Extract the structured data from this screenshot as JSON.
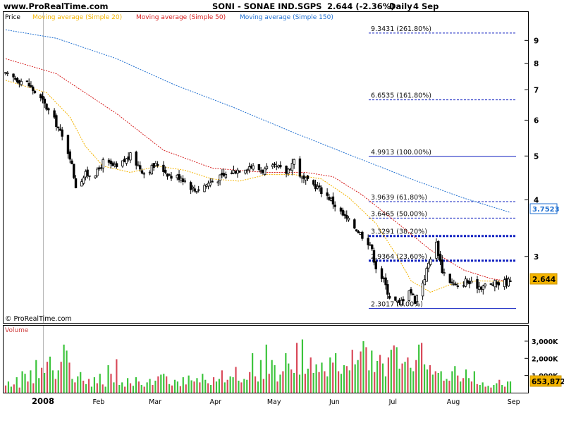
{
  "header": {
    "site": "www.ProRealTime.com",
    "instrument": "SONI - SONAE IND.SGPS",
    "last_quote": "2.644 (-2.36%)",
    "period": "Daily",
    "date": "4 Sep"
  },
  "copyright": "© ProRealTime.com",
  "legend": [
    {
      "label": "Price",
      "color": "#000000"
    },
    {
      "label": "Moving average (Simple 20)",
      "color": "#f4b400"
    },
    {
      "label": "Moving average (Simple 50)",
      "color": "#d62020"
    },
    {
      "label": "Moving average (Simple 150)",
      "color": "#1f6fd0"
    }
  ],
  "volume_label": "Volume",
  "chart_data": [
    {
      "type": "candlestick",
      "yscale": "log",
      "ylim": [
        2.14,
        10.4
      ],
      "y_ticks": [
        3,
        4,
        5,
        6,
        7,
        8,
        9
      ],
      "x_ticks": [
        "2008",
        "Feb",
        "Mar",
        "Apr",
        "May",
        "Jun",
        "Jul",
        "Aug",
        "Sep"
      ],
      "last_price": "2.644",
      "last_price_color": "#f4b400",
      "ma150_last": "3.7523",
      "ma150_last_color": "#1f6fd0",
      "fibonacci_levels": [
        {
          "value": 9.3431,
          "label": "9.3431 (261.80%)",
          "style": "dashed"
        },
        {
          "value": 6.6535,
          "label": "6.6535 (161.80%)",
          "style": "dashed"
        },
        {
          "value": 4.9913,
          "label": "4.9913 (100.00%)",
          "style": "solid"
        },
        {
          "value": 3.9639,
          "label": "3.9639 (61.80%)",
          "style": "dashed"
        },
        {
          "value": 3.6465,
          "label": "3.6465 (50.00%)",
          "style": "dashed"
        },
        {
          "value": 3.3291,
          "label": "3.3291 (38.20%)",
          "style": "heavy"
        },
        {
          "value": 2.9364,
          "label": "2.9364 (23.60%)",
          "style": "heavy"
        },
        {
          "value": 2.3017,
          "label": "2.3017 (0.00%)",
          "style": "solid"
        }
      ],
      "close_anchors": [
        [
          "2007-12-20",
          7.55
        ],
        [
          "2007-12-31",
          7.25
        ],
        [
          "2008-01-08",
          6.6
        ],
        [
          "2008-01-15",
          5.9
        ],
        [
          "2008-01-22",
          5.0
        ],
        [
          "2008-01-25",
          4.3
        ],
        [
          "2008-01-30",
          4.55
        ],
        [
          "2008-02-05",
          4.6
        ],
        [
          "2008-02-08",
          4.85
        ],
        [
          "2008-02-15",
          4.7
        ],
        [
          "2008-02-22",
          5.0
        ],
        [
          "2008-02-29",
          4.6
        ],
        [
          "2008-03-07",
          4.8
        ],
        [
          "2008-03-14",
          4.5
        ],
        [
          "2008-03-19",
          4.5
        ],
        [
          "2008-03-26",
          4.2
        ],
        [
          "2008-04-02",
          4.35
        ],
        [
          "2008-04-09",
          4.5
        ],
        [
          "2008-04-16",
          4.65
        ],
        [
          "2008-04-23",
          4.75
        ],
        [
          "2008-04-30",
          4.65
        ],
        [
          "2008-05-07",
          4.72
        ],
        [
          "2008-05-12",
          4.6
        ],
        [
          "2008-05-16",
          4.9
        ],
        [
          "2008-05-20",
          4.45
        ],
        [
          "2008-05-27",
          4.3
        ],
        [
          "2008-06-03",
          4.05
        ],
        [
          "2008-06-10",
          3.7
        ],
        [
          "2008-06-17",
          3.45
        ],
        [
          "2008-06-24",
          3.2
        ],
        [
          "2008-06-27",
          2.85
        ],
        [
          "2008-07-01",
          2.65
        ],
        [
          "2008-07-04",
          2.45
        ],
        [
          "2008-07-09",
          2.35
        ],
        [
          "2008-07-14",
          2.55
        ],
        [
          "2008-07-17",
          2.4
        ],
        [
          "2008-07-22",
          2.7
        ],
        [
          "2008-07-25",
          3.0
        ],
        [
          "2008-07-28",
          3.2
        ],
        [
          "2008-07-31",
          2.8
        ],
        [
          "2008-08-04",
          2.65
        ],
        [
          "2008-08-08",
          2.55
        ],
        [
          "2008-08-12",
          2.65
        ],
        [
          "2008-08-15",
          2.6
        ],
        [
          "2008-08-20",
          2.58
        ],
        [
          "2008-08-25",
          2.6
        ],
        [
          "2008-08-29",
          2.62
        ],
        [
          "2008-09-04",
          2.644
        ]
      ],
      "ma20_anchors": [
        [
          "2007-12-20",
          7.35
        ],
        [
          "2008-01-10",
          6.9
        ],
        [
          "2008-01-22",
          6.1
        ],
        [
          "2008-01-30",
          5.25
        ],
        [
          "2008-02-08",
          4.75
        ],
        [
          "2008-02-22",
          4.6
        ],
        [
          "2008-03-07",
          4.75
        ],
        [
          "2008-03-21",
          4.65
        ],
        [
          "2008-04-04",
          4.45
        ],
        [
          "2008-04-18",
          4.4
        ],
        [
          "2008-05-02",
          4.55
        ],
        [
          "2008-05-16",
          4.55
        ],
        [
          "2008-05-30",
          4.45
        ],
        [
          "2008-06-13",
          4.05
        ],
        [
          "2008-06-27",
          3.55
        ],
        [
          "2008-07-08",
          3.0
        ],
        [
          "2008-07-15",
          2.65
        ],
        [
          "2008-07-25",
          2.5
        ],
        [
          "2008-08-04",
          2.6
        ],
        [
          "2008-08-18",
          2.65
        ],
        [
          "2008-09-04",
          2.64
        ]
      ],
      "ma50_anchors": [
        [
          "2007-12-20",
          8.2
        ],
        [
          "2008-01-15",
          7.6
        ],
        [
          "2008-02-15",
          6.2
        ],
        [
          "2008-03-10",
          5.15
        ],
        [
          "2008-04-04",
          4.7
        ],
        [
          "2008-05-01",
          4.6
        ],
        [
          "2008-05-22",
          4.6
        ],
        [
          "2008-06-05",
          4.5
        ],
        [
          "2008-06-20",
          4.1
        ],
        [
          "2008-07-10",
          3.5
        ],
        [
          "2008-07-25",
          3.1
        ],
        [
          "2008-08-11",
          2.8
        ],
        [
          "2008-08-25",
          2.68
        ],
        [
          "2008-09-04",
          2.64
        ]
      ],
      "ma150_anchors": [
        [
          "2007-12-20",
          9.5
        ],
        [
          "2008-01-15",
          9.1
        ],
        [
          "2008-02-15",
          8.2
        ],
        [
          "2008-03-15",
          7.2
        ],
        [
          "2008-04-15",
          6.4
        ],
        [
          "2008-05-15",
          5.65
        ],
        [
          "2008-06-15",
          5.0
        ],
        [
          "2008-07-15",
          4.45
        ],
        [
          "2008-08-10",
          4.05
        ],
        [
          "2008-09-04",
          3.7523
        ]
      ]
    },
    {
      "type": "bar",
      "name": "Volume",
      "ylim": [
        0,
        3900000
      ],
      "y_ticks": [
        {
          "value": 1000000,
          "label": "1,000K"
        },
        {
          "value": 2000000,
          "label": "2,000K"
        },
        {
          "value": 3000000,
          "label": "3,000K"
        }
      ],
      "last_value": "653,872",
      "last_value_color": "#f4b400",
      "up_color": "#3cc43c",
      "down_color": "#d94a5a",
      "values": [
        420000,
        650000,
        350000,
        480000,
        900000,
        300000,
        1250000,
        1100000,
        650000,
        1300000,
        550000,
        1900000,
        850000,
        1450000,
        1150000,
        1800000,
        2100000,
        1300000,
        800000,
        1300000,
        1800000,
        2800000,
        2450000,
        1750000,
        800000,
        600000,
        950000,
        1200000,
        700000,
        500000,
        800000,
        350000,
        900000,
        550000,
        1100000,
        480000,
        350000,
        1600000,
        1100000,
        600000,
        1950000,
        450000,
        600000,
        350000,
        850000,
        550000,
        400000,
        900000,
        650000,
        450000,
        350000,
        600000,
        800000,
        450000,
        700000,
        950000,
        1050000,
        1100000,
        950000,
        500000,
        420000,
        750000,
        650000,
        380000,
        900000,
        480000,
        1000000,
        720000,
        650000,
        850000,
        600000,
        1100000,
        750000,
        550000,
        450000,
        900000,
        650000,
        800000,
        1300000,
        600000,
        750000,
        950000,
        900000,
        1500000,
        700000,
        600000,
        800000,
        750000,
        1200000,
        2300000,
        950000,
        650000,
        1900000,
        800000,
        2800000,
        1100000,
        1900000,
        1600000,
        650000,
        1050000,
        1250000,
        2300000,
        1700000,
        1350000,
        1150000,
        2900000,
        1050000,
        3100000,
        1100000,
        1400000,
        2050000,
        1150000,
        1650000,
        1200000,
        1750000,
        1250000,
        950000,
        2050000,
        1750000,
        2300000,
        1250000,
        1100000,
        1600000,
        1550000,
        1300000,
        2500000,
        1650000,
        1900000,
        2400000,
        3000000,
        2650000,
        1300000,
        2450000,
        1200000,
        1850000,
        2200000,
        1700000,
        950000,
        2050000,
        2500000,
        2750000,
        2650000,
        1400000,
        1700000,
        1800000,
        2050000,
        1450000,
        1250000,
        1900000,
        2800000,
        2900000,
        1650000,
        1350000,
        1600000,
        1050000,
        1250000,
        1150000,
        1250000,
        700000,
        800000,
        700000,
        1250000,
        1550000,
        1000000,
        650000,
        850000,
        1350000,
        850000,
        650000,
        1250000,
        500000,
        450000,
        600000,
        350000,
        400000,
        300000,
        450000,
        550000,
        750000,
        450000,
        350000,
        650000,
        653872
      ]
    }
  ]
}
